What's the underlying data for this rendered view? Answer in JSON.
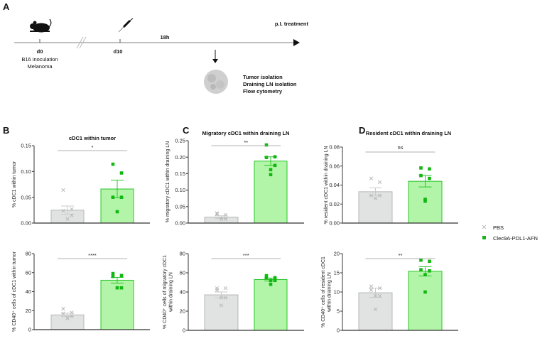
{
  "panels": {
    "a": "A",
    "b": "B",
    "c": "C",
    "d": "D"
  },
  "timeline": {
    "d0": "d0",
    "d0_line1": "B16 inoculation",
    "d0_line2": "Melanoma",
    "d10": "d10",
    "interval": "18h",
    "treatment": "p.I. treatment",
    "steps": [
      "Tumor isolation",
      "Draining LN isolation",
      "Flow cytometry"
    ],
    "icons": [
      "mouse-icon",
      "syringe-icon",
      "tumor-icon"
    ]
  },
  "legend": [
    {
      "label": "PBS",
      "color": "#c8c8c8",
      "marker": "x"
    },
    {
      "label": "Clec9A-PDL1-AFN",
      "color": "#1fbf1f",
      "marker": "square"
    }
  ],
  "colors": {
    "pbs_bar": "#e1e3e3",
    "pbs_edge": "#b5b8b8",
    "afn_bar": "#b3f5a8",
    "afn_edge": "#2ac42a",
    "afn_point": "#12b812",
    "pbs_point": "#b8b8b8"
  },
  "chart_data": [
    {
      "type": "bar",
      "title": "cDC1 within tumor",
      "ylabel": [
        "% cDC1 within tumor"
      ],
      "ylim": [
        0,
        0.15
      ],
      "ticks": [
        "0.00",
        "0.05",
        "0.10",
        "0.15"
      ],
      "tickvals": [
        0,
        0.05,
        0.1,
        0.15
      ],
      "significance": "*",
      "series": [
        {
          "name": "PBS",
          "mean": 0.025,
          "sem": 0.008,
          "points": [
            0.064,
            0.027,
            0.024,
            0.015,
            0.008
          ]
        },
        {
          "name": "Clec9A-PDL1-AFN",
          "mean": 0.066,
          "sem": 0.017,
          "points": [
            0.114,
            0.097,
            0.05,
            0.05,
            0.022
          ]
        }
      ]
    },
    {
      "type": "bar",
      "title": "",
      "ylabel": [
        "% CD40⁺ cells of cDC1 within tumor"
      ],
      "ylim": [
        0,
        80
      ],
      "ticks": [
        "0",
        "20",
        "40",
        "60",
        "80"
      ],
      "tickvals": [
        0,
        20,
        40,
        60,
        80
      ],
      "significance": "****",
      "series": [
        {
          "name": "PBS",
          "mean": 15.5,
          "sem": 1.8,
          "points": [
            22,
            18,
            17,
            14,
            12,
            12
          ]
        },
        {
          "name": "Clec9A-PDL1-AFN",
          "mean": 52,
          "sem": 3,
          "points": [
            59,
            57,
            56,
            44,
            44
          ]
        }
      ]
    },
    {
      "type": "bar",
      "title": "Migratory cDC1 within draining LN",
      "ylabel": [
        "% migratory cDC1 within draining LN"
      ],
      "ylim": [
        0,
        0.25
      ],
      "ticks": [
        "0.00",
        "0.05",
        "0.10",
        "0.15",
        "0.20",
        "0.25"
      ],
      "tickvals": [
        0,
        0.05,
        0.1,
        0.15,
        0.2,
        0.25
      ],
      "significance": "**",
      "series": [
        {
          "name": "PBS",
          "mean": 0.018,
          "sem": 0.004,
          "points": [
            0.03,
            0.025,
            0.027,
            0.012,
            0.012,
            0.012
          ]
        },
        {
          "name": "Clec9A-PDL1-AFN",
          "mean": 0.188,
          "sem": 0.013,
          "points": [
            0.237,
            0.201,
            0.199,
            0.175,
            0.162,
            0.147
          ]
        }
      ]
    },
    {
      "type": "bar",
      "title": "",
      "ylabel": [
        "% CD40⁺ cells of migratory cDC1",
        "within draining LN"
      ],
      "ylim": [
        0,
        80
      ],
      "ticks": [
        "0",
        "20",
        "40",
        "60",
        "80"
      ],
      "tickvals": [
        0,
        20,
        40,
        60,
        80
      ],
      "significance": "***",
      "series": [
        {
          "name": "PBS",
          "mean": 37,
          "sem": 3,
          "points": [
            44,
            44,
            42,
            34,
            34,
            26
          ]
        },
        {
          "name": "Clec9A-PDL1-AFN",
          "mean": 53,
          "sem": 1.5,
          "points": [
            57,
            55,
            55,
            52,
            52,
            48
          ]
        }
      ]
    },
    {
      "type": "bar",
      "title": "Resident cDC1 within draining LN",
      "ylabel": [
        "% resident cDC1 within draining LN"
      ],
      "ylim": [
        0,
        0.08
      ],
      "ticks": [
        "0.00",
        "0.02",
        "0.04",
        "0.06",
        "0.08"
      ],
      "tickvals": [
        0,
        0.02,
        0.04,
        0.06,
        0.08
      ],
      "significance": "ns",
      "series": [
        {
          "name": "PBS",
          "mean": 0.033,
          "sem": 0.004,
          "points": [
            0.047,
            0.043,
            0.029,
            0.029,
            0.026,
            0.026
          ]
        },
        {
          "name": "Clec9A-PDL1-AFN",
          "mean": 0.044,
          "sem": 0.006,
          "points": [
            0.058,
            0.057,
            0.05,
            0.047,
            0.025,
            0.023
          ]
        }
      ]
    },
    {
      "type": "bar",
      "title": "",
      "ylabel": [
        "% CD40⁺ cells of resident cDC1",
        "within draining LN"
      ],
      "ylim": [
        0,
        20
      ],
      "ticks": [
        "0",
        "5",
        "10",
        "15",
        "20"
      ],
      "tickvals": [
        0,
        5,
        10,
        15,
        20
      ],
      "significance": "**",
      "series": [
        {
          "name": "PBS",
          "mean": 9.8,
          "sem": 1.2,
          "points": [
            11.5,
            11,
            10.5,
            9,
            9,
            5.5
          ]
        },
        {
          "name": "Clec9A-PDL1-AFN",
          "mean": 15.4,
          "sem": 1.2,
          "points": [
            18.3,
            18,
            15.8,
            15.5,
            14.5,
            10
          ]
        }
      ]
    }
  ]
}
